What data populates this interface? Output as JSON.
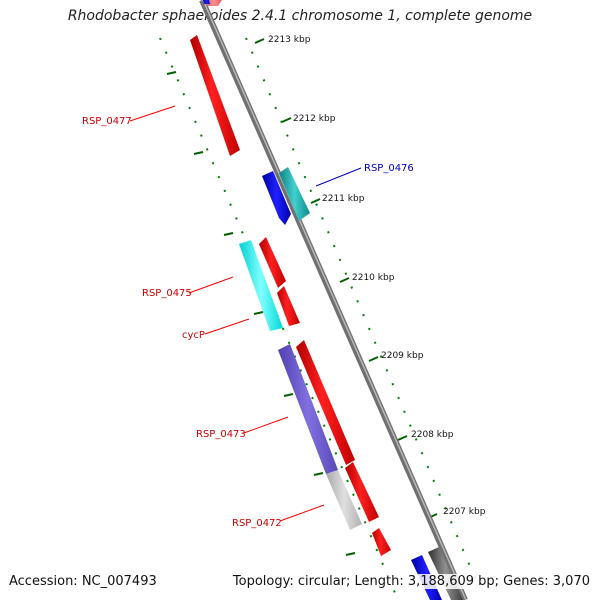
{
  "title": "Rhodobacter sphaeroides 2.4.1 chromosome 1, complete genome",
  "accession_text": "Accession: NC_007493",
  "topology_text": "Topology: circular; Length: 3,188,609 bp; Genes: 3,070",
  "ruler_labels": [
    "2213 kbp",
    "2212 kbp",
    "2211 kbp",
    "2210 kbp",
    "2209 kbp",
    "2208 kbp",
    "2207 kbp"
  ],
  "genes": [
    {
      "label": "RSP_0477",
      "color": "#ff0000"
    },
    {
      "label": "RSP_0476",
      "color": "#0000cc"
    },
    {
      "label": "RSP_0475",
      "color": "#ff0000"
    },
    {
      "label": "cycP",
      "color": "#ff0000"
    },
    {
      "label": "RSP_0473",
      "color": "#ff0000"
    },
    {
      "label": "RSP_0472",
      "color": "#ff0000"
    }
  ],
  "colors": {
    "backbone": "#808080",
    "tick_green": "#008000",
    "gene_red": "#ff0000",
    "gene_blue": "#0000ff",
    "gene_teal": "#20b2aa",
    "gene_cyan": "#00ffff",
    "gene_purple": "#6a5acd",
    "gene_lightgray": "#c0c0c0",
    "gene_darkgray": "#555555"
  }
}
